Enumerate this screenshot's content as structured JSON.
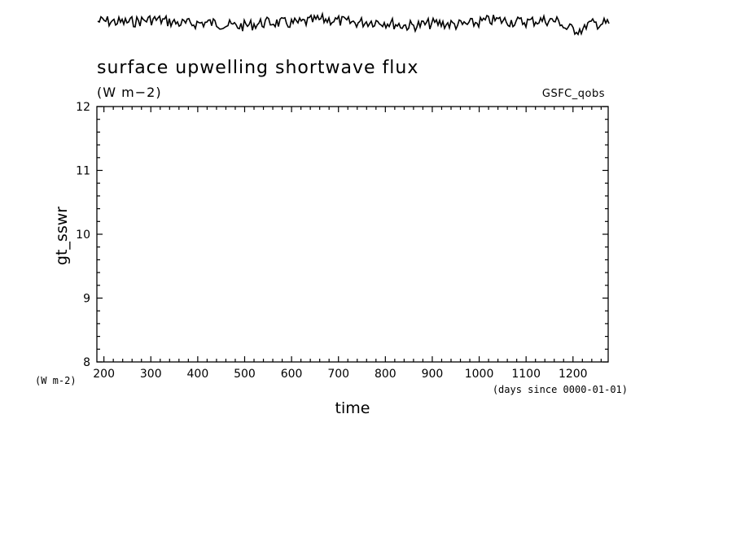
{
  "title": "surface upwelling shortwave flux",
  "units": "(W m−2)",
  "dataset": "GSFC_qobs",
  "ylabel": "gt_sswr",
  "y_units_corner": "(W m-2)",
  "xlabel": "time",
  "x_units": "(days since 0000-01-01)",
  "chart_data": {
    "type": "line",
    "title": "surface upwelling shortwave flux",
    "xlabel": "time",
    "ylabel": "gt_sswr",
    "xlim": [
      185,
      1275
    ],
    "ylim": [
      8,
      12
    ],
    "x_ticks": [
      200,
      300,
      400,
      500,
      600,
      700,
      800,
      900,
      1000,
      1100,
      1200
    ],
    "x_tick_labels": [
      "200",
      "300",
      "400",
      "500",
      "600",
      "700",
      "800",
      "900",
      "1000",
      "1100",
      "1200"
    ],
    "y_ticks": [
      8,
      9,
      10,
      11,
      12
    ],
    "y_tick_labels": [
      "8",
      "9",
      "10",
      "11",
      "12"
    ],
    "series": [],
    "grid": false,
    "preview_strip": true
  }
}
